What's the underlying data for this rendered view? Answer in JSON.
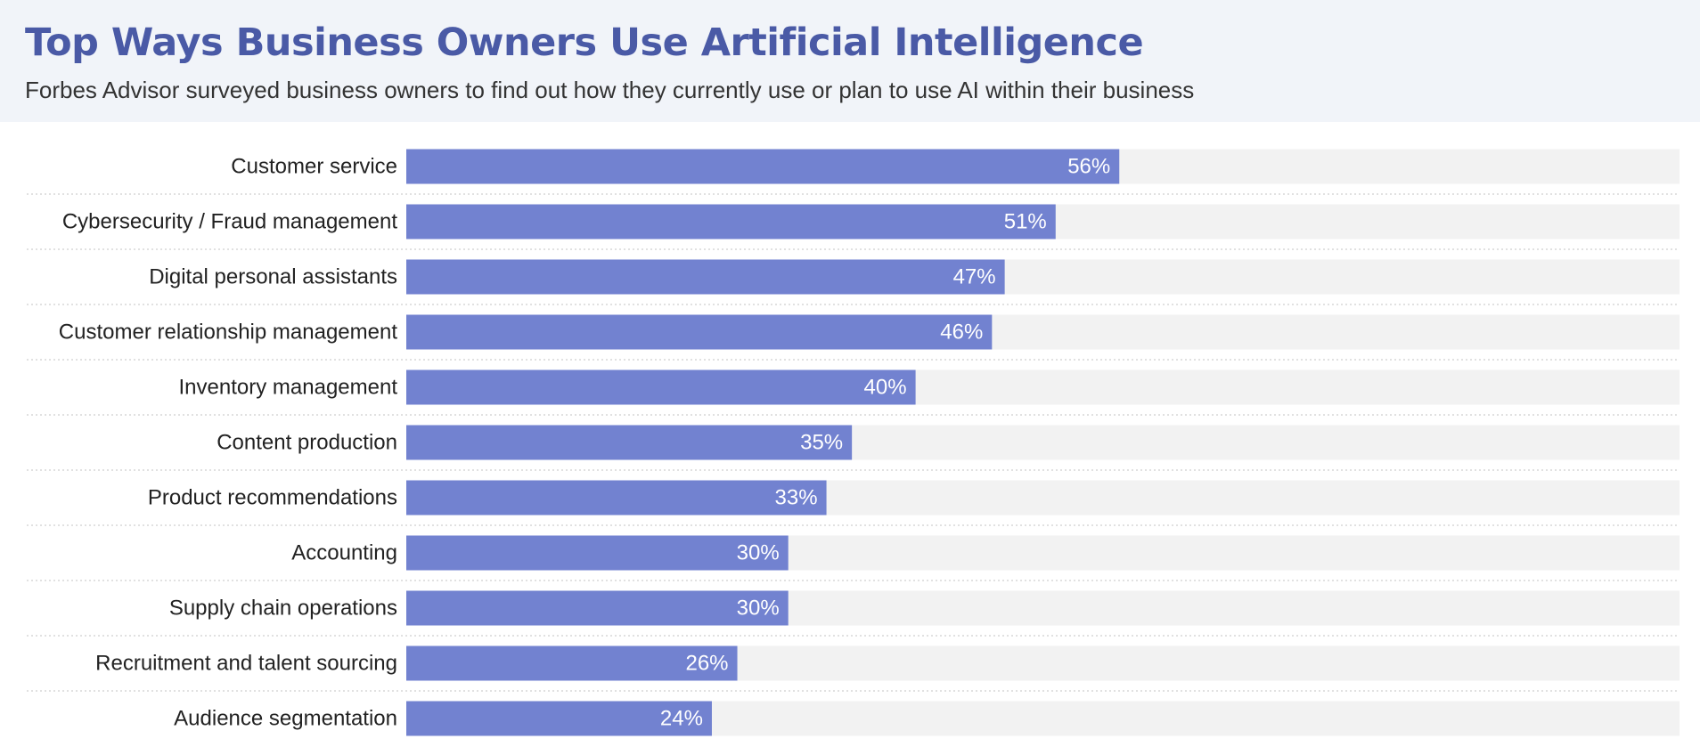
{
  "chart_data": {
    "type": "bar",
    "orientation": "horizontal",
    "title": "Top Ways Business Owners Use Artificial Intelligence",
    "subtitle": "Forbes Advisor surveyed business owners to find out how they currently use or plan to use AI within their business",
    "categories": [
      "Customer service",
      "Cybersecurity / Fraud management",
      "Digital personal assistants",
      "Customer relationship management",
      "Inventory management",
      "Content production",
      "Product recommendations",
      "Accounting",
      "Supply chain operations",
      "Recruitment and talent sourcing",
      "Audience segmentation"
    ],
    "values": [
      56,
      51,
      47,
      46,
      40,
      35,
      33,
      30,
      30,
      26,
      24
    ],
    "value_labels": [
      "56%",
      "51%",
      "47%",
      "46%",
      "40%",
      "35%",
      "33%",
      "30%",
      "30%",
      "26%",
      "24%"
    ],
    "color": "#7282d0",
    "xlim": [
      0,
      100
    ]
  }
}
